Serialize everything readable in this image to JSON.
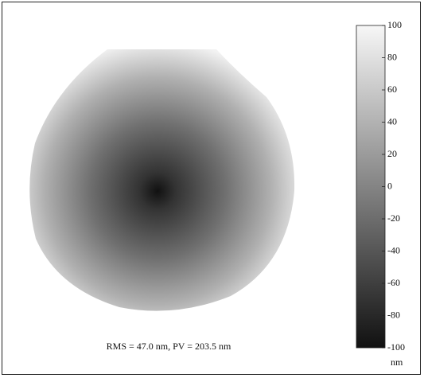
{
  "chart_data": {
    "type": "surface-map",
    "annotation": "RMS = 47.0 nm, PV = 203.5 nm",
    "colorbar": {
      "label": "nm",
      "ylim": [
        -100,
        100
      ],
      "yticks": [
        -100,
        -80,
        -60,
        -40,
        -20,
        0,
        20,
        40,
        60,
        80,
        100
      ],
      "colors": [
        "#111111",
        "#f7f7f7"
      ]
    }
  }
}
